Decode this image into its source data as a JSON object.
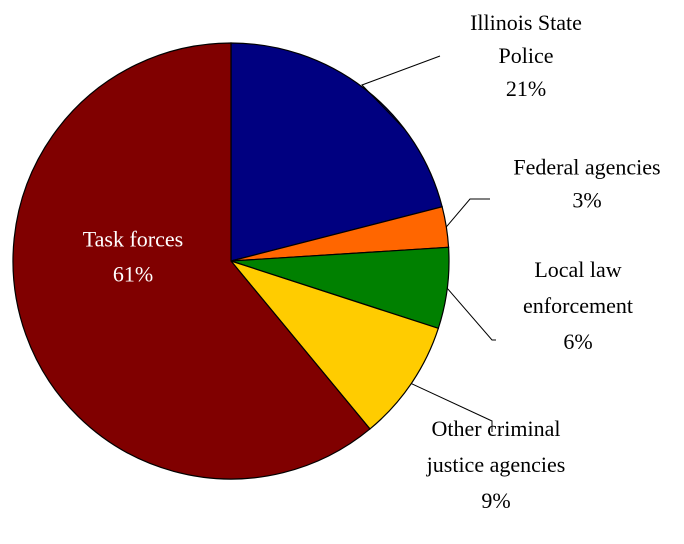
{
  "chart_data": {
    "type": "pie",
    "title": "",
    "legend": "none",
    "start_angle_deg_clockwise_from_top": 0,
    "direction": "clockwise",
    "slices": [
      {
        "label": [
          "Illinois State",
          "Police"
        ],
        "value": 21,
        "value_label": "21%",
        "color": "#000080"
      },
      {
        "label": [
          "Federal agencies"
        ],
        "value": 3,
        "value_label": "3%",
        "color": "#FF6600"
      },
      {
        "label": [
          "Local law",
          "enforcement"
        ],
        "value": 6,
        "value_label": "6%",
        "color": "#008000"
      },
      {
        "label": [
          "Other criminal",
          "justice agencies"
        ],
        "value": 9,
        "value_label": "9%",
        "color": "#FFCC00"
      },
      {
        "label": [
          "Task forces"
        ],
        "value": 61,
        "value_label": "61%",
        "color": "#800000"
      }
    ]
  }
}
